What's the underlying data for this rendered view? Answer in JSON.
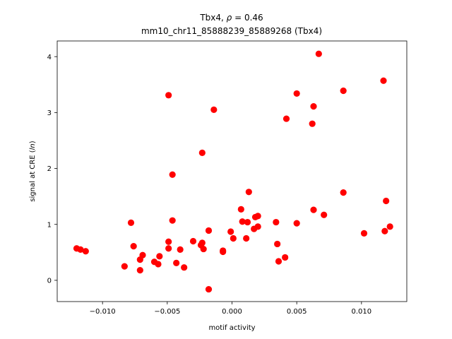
{
  "chart_data": {
    "type": "scatter",
    "title_line1_prefix": "Tbx4, ",
    "title_line1_rho": "ρ",
    "title_line1_suffix": " = 0.46",
    "title_line2": "mm10_chr11_85888239_85889268 (Tbx4)",
    "xlabel": "motif activity",
    "ylabel_prefix": "signal at CRE (",
    "ylabel_italic": "ln",
    "ylabel_suffix": ")",
    "xlim": [
      -0.0135,
      0.0135
    ],
    "ylim": [
      -0.38,
      4.28
    ],
    "xticks": [
      {
        "value": -0.01,
        "label": "−0.010"
      },
      {
        "value": -0.005,
        "label": "−0.005"
      },
      {
        "value": 0.0,
        "label": "0.000"
      },
      {
        "value": 0.005,
        "label": "0.005"
      },
      {
        "value": 0.01,
        "label": "0.010"
      }
    ],
    "yticks": [
      {
        "value": 0,
        "label": "0"
      },
      {
        "value": 1,
        "label": "1"
      },
      {
        "value": 2,
        "label": "2"
      },
      {
        "value": 3,
        "label": "3"
      },
      {
        "value": 4,
        "label": "4"
      }
    ],
    "grid": false,
    "marker_color": "#ff0000",
    "points": [
      [
        -0.012,
        0.57
      ],
      [
        -0.0117,
        0.55
      ],
      [
        -0.0113,
        0.52
      ],
      [
        -0.0083,
        0.25
      ],
      [
        -0.0078,
        1.03
      ],
      [
        -0.0076,
        0.61
      ],
      [
        -0.0071,
        0.37
      ],
      [
        -0.0071,
        0.18
      ],
      [
        -0.0069,
        0.45
      ],
      [
        -0.006,
        0.33
      ],
      [
        -0.0057,
        0.29
      ],
      [
        -0.0056,
        0.43
      ],
      [
        -0.0049,
        3.31
      ],
      [
        -0.0049,
        0.69
      ],
      [
        -0.0049,
        0.57
      ],
      [
        -0.0046,
        1.89
      ],
      [
        -0.0046,
        1.07
      ],
      [
        -0.0043,
        0.31
      ],
      [
        -0.004,
        0.55
      ],
      [
        -0.0037,
        0.23
      ],
      [
        -0.003,
        0.7
      ],
      [
        -0.0024,
        0.63
      ],
      [
        -0.0023,
        2.28
      ],
      [
        -0.0023,
        0.67
      ],
      [
        -0.0022,
        0.56
      ],
      [
        -0.0018,
        0.89
      ],
      [
        -0.0018,
        -0.16
      ],
      [
        -0.0014,
        3.05
      ],
      [
        -0.0007,
        0.53
      ],
      [
        -0.0007,
        0.51
      ],
      [
        -0.0001,
        0.87
      ],
      [
        0.0001,
        0.75
      ],
      [
        0.0007,
        1.27
      ],
      [
        0.0008,
        1.05
      ],
      [
        0.0011,
        0.75
      ],
      [
        0.0012,
        1.04
      ],
      [
        0.0013,
        1.58
      ],
      [
        0.0017,
        0.92
      ],
      [
        0.0018,
        1.13
      ],
      [
        0.002,
        1.15
      ],
      [
        0.002,
        0.96
      ],
      [
        0.0034,
        1.04
      ],
      [
        0.0035,
        0.65
      ],
      [
        0.0036,
        0.34
      ],
      [
        0.0041,
        0.41
      ],
      [
        0.0042,
        2.89
      ],
      [
        0.005,
        3.34
      ],
      [
        0.005,
        1.02
      ],
      [
        0.0062,
        2.8
      ],
      [
        0.0063,
        3.11
      ],
      [
        0.0063,
        1.26
      ],
      [
        0.0067,
        4.05
      ],
      [
        0.0071,
        1.17
      ],
      [
        0.0086,
        3.39
      ],
      [
        0.0086,
        1.57
      ],
      [
        0.0102,
        0.84
      ],
      [
        0.0117,
        3.57
      ],
      [
        0.0118,
        0.88
      ],
      [
        0.0119,
        1.42
      ],
      [
        0.0122,
        0.96
      ]
    ]
  }
}
